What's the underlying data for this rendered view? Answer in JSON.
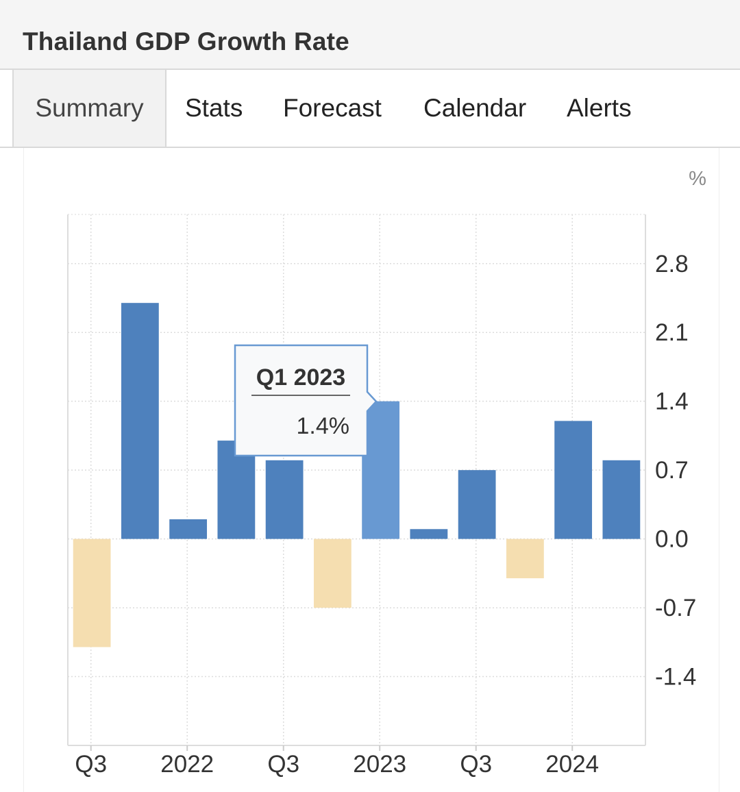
{
  "header": {
    "title": "Thailand GDP Growth Rate"
  },
  "tabs": [
    {
      "label": "Summary",
      "active": true
    },
    {
      "label": "Stats",
      "active": false
    },
    {
      "label": "Forecast",
      "active": false
    },
    {
      "label": "Calendar",
      "active": false
    },
    {
      "label": "Alerts",
      "active": false
    }
  ],
  "chart_data": {
    "type": "bar",
    "unit_label": "%",
    "categories": [
      "Q3 2021",
      "Q4 2021",
      "Q1 2022",
      "Q2 2022",
      "Q3 2022",
      "Q4 2022",
      "Q1 2023",
      "Q2 2023",
      "Q3 2023",
      "Q4 2023",
      "Q1 2024",
      "Q2 2024"
    ],
    "values": [
      -1.1,
      2.4,
      0.2,
      1.0,
      0.8,
      -0.7,
      1.4,
      0.1,
      0.7,
      -0.4,
      1.2,
      0.8
    ],
    "x_tick_labels": [
      {
        "index": 0,
        "label": "Q3"
      },
      {
        "index": 2,
        "label": "2022"
      },
      {
        "index": 4,
        "label": "Q3"
      },
      {
        "index": 6,
        "label": "2023"
      },
      {
        "index": 8,
        "label": "Q3"
      },
      {
        "index": 10,
        "label": "2024"
      }
    ],
    "y_ticks": [
      2.8,
      2.1,
      1.4,
      0.7,
      0.0,
      -0.7,
      -1.4
    ],
    "ylim": [
      -2.1,
      3.3
    ],
    "grid": true,
    "colors": {
      "positive": "#4e81bd",
      "negative": "#f5deb0",
      "highlight": "#6899d2"
    },
    "tooltip": {
      "index": 6,
      "title": "Q1 2023",
      "value": "1.4%"
    }
  }
}
